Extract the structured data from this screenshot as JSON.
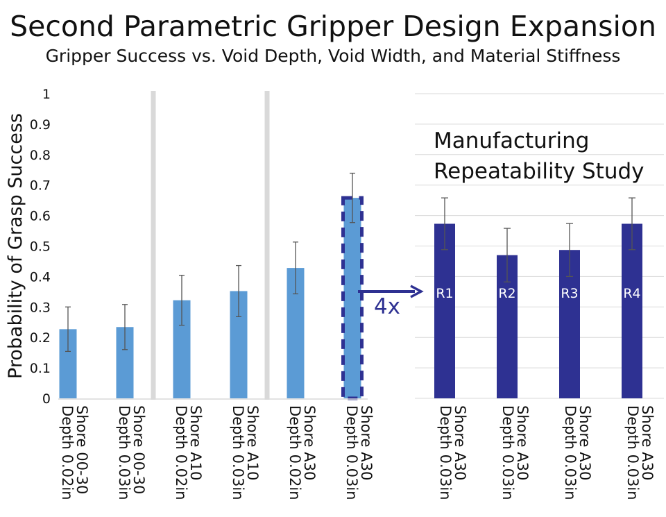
{
  "header": {
    "title": "Second Parametric Gripper Design Expansion",
    "subtitle": "Gripper Success vs. Void Depth, Void Width, and Material Stiffness"
  },
  "chart_data": [
    {
      "type": "bar",
      "ylabel": "Probability of Grasp Success",
      "ylim": [
        0,
        1
      ],
      "yticks": [
        "0",
        "0.1",
        "0.2",
        "0.3",
        "0.4",
        "0.5",
        "0.6",
        "0.7",
        "0.8",
        "0.9",
        "1"
      ],
      "categories": [
        [
          "Depth 0.02in",
          "Shore 00-30"
        ],
        [
          "Depth 0.03in",
          "Shore 00-30"
        ],
        [
          "Depth 0.02in",
          "Shore A10"
        ],
        [
          "Depth 0.03in",
          "Shore A10"
        ],
        [
          "Depth 0.02in",
          "Shore A30"
        ],
        [
          "Depth 0.03in",
          "Shore A30"
        ]
      ],
      "values": [
        0.227,
        0.234,
        0.322,
        0.352,
        0.428,
        0.658
      ],
      "error": [
        0.073,
        0.074,
        0.082,
        0.084,
        0.085,
        0.081
      ],
      "bar_color": "#5b9bd5",
      "highlight_index": 5,
      "highlight_color": "#2e3192",
      "group_separators_after": [
        1,
        3
      ],
      "separator_color": "#d9d9d9",
      "grid": false
    },
    {
      "type": "bar",
      "title": [
        "Manufacturing",
        "Repeatability Study"
      ],
      "ylim": [
        0,
        1
      ],
      "categories": [
        [
          "Depth 0.03in",
          "Shore A30"
        ],
        [
          "Depth 0.03in",
          "Shore A30"
        ],
        [
          "Depth 0.03in",
          "Shore A30"
        ],
        [
          "Depth 0.03in",
          "Shore A30"
        ]
      ],
      "bar_labels": [
        "R1",
        "R2",
        "R3",
        "R4"
      ],
      "values": [
        0.573,
        0.47,
        0.487,
        0.573
      ],
      "error": [
        0.085,
        0.088,
        0.087,
        0.085
      ],
      "bar_color": "#2e3192",
      "grid": true,
      "grid_color": "#d9d9d9"
    }
  ],
  "annotation": {
    "arrow_label": "4x",
    "arrow_color": "#2e3192"
  }
}
